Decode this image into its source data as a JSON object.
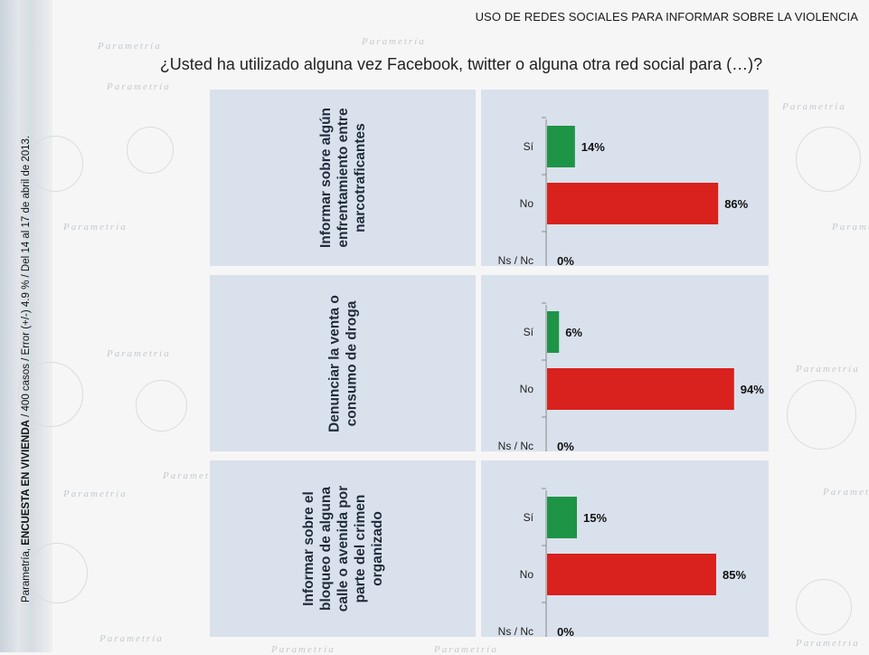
{
  "header": {
    "title": "USO DE REDES SOCIALES PARA INFORMAR SOBRE LA VIOLENCIA",
    "question": "¿Usted ha utilizado alguna vez Facebook, twitter o alguna otra red social para (…)?"
  },
  "source": {
    "prefix": "Parametría, ",
    "bold": "ENCUESTA EN VIVIENDA",
    "suffix": " / 400 casos / Error (+/-) 4.9 % / Del 14 al 17 de abril de 2013."
  },
  "watermark_text": "Parametría",
  "colors": {
    "si": "#1e9447",
    "no": "#d9211d",
    "panel": "#d9e1ec"
  },
  "chart_data": {
    "type": "bar",
    "orientation": "horizontal",
    "unit": "%",
    "xlim": [
      0,
      100
    ],
    "categories": [
      "Sí",
      "No",
      "Ns / Nc"
    ],
    "panels": [
      {
        "label": "Informar sobre algún enfrentamiento entre narcotraficantes",
        "values": [
          14,
          86,
          0
        ],
        "value_labels": [
          "14%",
          "86%",
          "0%"
        ]
      },
      {
        "label": "Denunciar la venta o consumo de droga",
        "values": [
          6,
          94,
          0
        ],
        "value_labels": [
          "6%",
          "94%",
          "0%"
        ]
      },
      {
        "label": "Informar sobre el bloqueo de alguna calle o avenida por parte del crimen organizado",
        "values": [
          15,
          85,
          0
        ],
        "value_labels": [
          "15%",
          "85%",
          "0%"
        ]
      }
    ]
  }
}
